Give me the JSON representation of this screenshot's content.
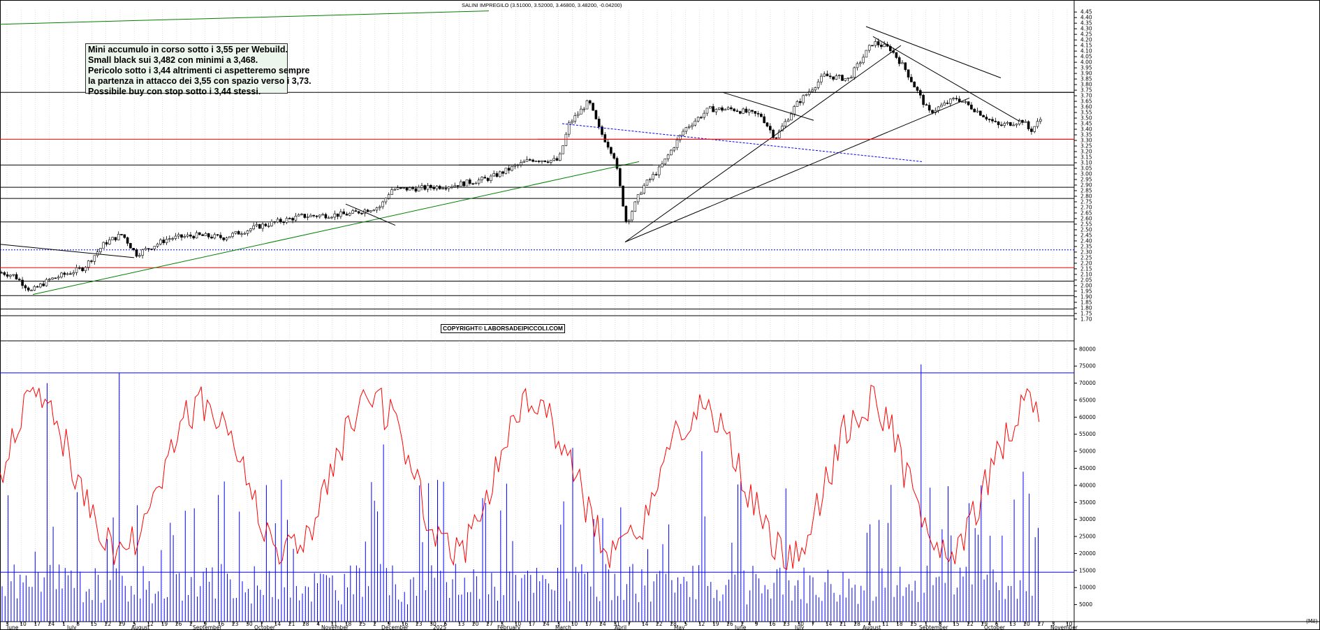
{
  "title": "SALINI IMPREGILO (3.51000, 3.52000, 3.46800, 3.48200, -0.04200)",
  "note_lines": [
    "Mini accumulo in corso sotto i 3,55 per Webuild.",
    "Small black sui 3,482 con minimi a 3,468.",
    "Pericolo sotto i 3,44 altrimenti ci aspetteremo sempre",
    "la partenza in attacco dei 3,55 con spazio verso i 3,73.",
    "Possibile buy con stop sotto i 3,44 stessi."
  ],
  "copyright": "COPYRIGHT© LABORSADEIPICCOLI.COM",
  "colors": {
    "candle": "#000000",
    "volume": "#0000ff",
    "oscillator": "#ff0000",
    "support": "#ff0000",
    "trend_green": "#008000",
    "dotted": "#0000ff",
    "grid": "#c8c8c8"
  },
  "chart_data": [
    {
      "type": "candlestick",
      "y_ticks": [
        "4.45",
        "4.40",
        "4.35",
        "4.30",
        "4.25",
        "4.20",
        "4.15",
        "4.10",
        "4.05",
        "4.00",
        "3.95",
        "3.90",
        "3.85",
        "3.80",
        "3.75",
        "3.70",
        "3.65",
        "3.60",
        "3.55",
        "3.50",
        "3.45",
        "3.40",
        "3.35",
        "3.30",
        "3.25",
        "3.20",
        "3.15",
        "3.10",
        "3.05",
        "3.00",
        "2.95",
        "2.90",
        "2.85",
        "2.80",
        "2.75",
        "2.70",
        "2.65",
        "2.60",
        "2.55",
        "2.50",
        "2.45",
        "2.40",
        "2.35",
        "2.30",
        "2.25",
        "2.20",
        "2.15",
        "2.10",
        "2.05",
        "2.00",
        "1.95",
        "1.90",
        "1.85",
        "1.80",
        "1.75",
        "1.70"
      ],
      "ylim": [
        1.68,
        4.47
      ],
      "x_ticks": [
        "3",
        "10",
        "17",
        "24",
        "1",
        "8",
        "15",
        "22",
        "29",
        "5",
        "12",
        "19",
        "26",
        "2",
        "9",
        "16",
        "23",
        "30",
        "7",
        "14",
        "21",
        "28",
        "4",
        "11",
        "18",
        "25",
        "2",
        "9",
        "16",
        "23",
        "30",
        "6",
        "13",
        "20",
        "27",
        "3",
        "10",
        "17",
        "24",
        "3",
        "10",
        "17",
        "24",
        "31",
        "7",
        "14",
        "22",
        "28",
        "5",
        "12",
        "19",
        "26",
        "2",
        "9",
        "16",
        "23",
        "30",
        "7",
        "14",
        "21",
        "28",
        "4",
        "11",
        "18",
        "25",
        "1",
        "8",
        "15",
        "22",
        "29",
        "6",
        "13",
        "20",
        "27",
        "3",
        "10"
      ],
      "month_labels": [
        "June",
        "July",
        "August",
        "September",
        "October",
        "November",
        "December",
        "2025",
        "February",
        "March",
        "April",
        "May",
        "June",
        "July",
        "August",
        "September",
        "October",
        "November"
      ],
      "horizontal_levels": {
        "black": [
          3.73,
          3.08,
          2.88,
          2.78,
          2.57,
          2.04,
          1.91,
          1.79,
          1.73
        ],
        "red": [
          3.31,
          2.16
        ],
        "dotted_blue": [
          2.32
        ]
      },
      "last": {
        "open": 3.51,
        "high": 3.52,
        "low": 3.468,
        "close": 3.482,
        "change": -0.042
      }
    },
    {
      "type": "bar+line",
      "y_ticks": [
        "80000",
        "75000",
        "70000",
        "65000",
        "60000",
        "55000",
        "50000",
        "45000",
        "40000",
        "35000",
        "30000",
        "25000",
        "20000",
        "15000",
        "10000",
        "5000"
      ],
      "ylim": [
        0,
        82000
      ],
      "horizontal_levels": [
        73000,
        14500
      ],
      "unit_label": "(Mil)"
    }
  ]
}
